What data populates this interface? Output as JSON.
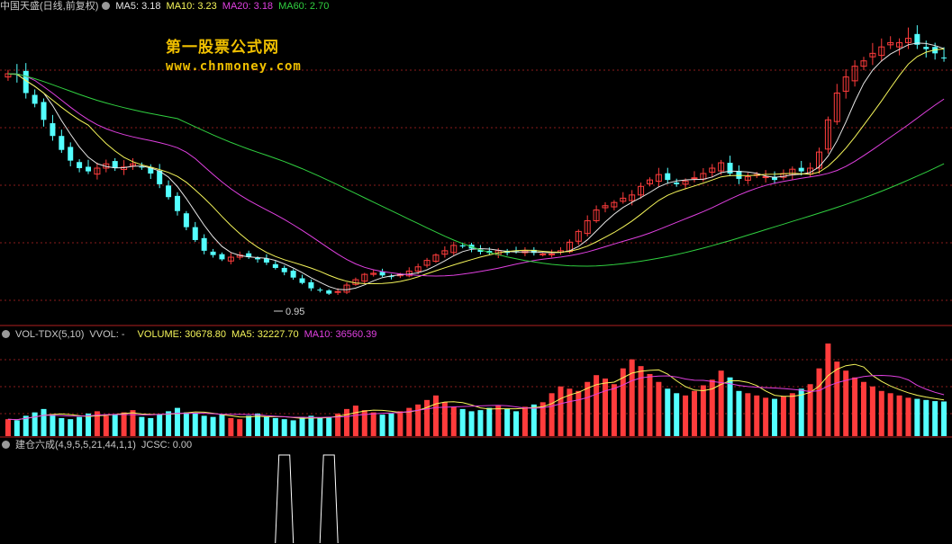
{
  "watermark": {
    "line1": "第一股票公式网",
    "line2": "www.chnmoney.com"
  },
  "panel_price": {
    "header": {
      "name": "中国天盛(日线,前复权)",
      "ma5": "MA5: 3.18",
      "ma10": "MA10: 3.23",
      "ma20": "MA20: 3.18",
      "ma60": "MA60: 2.70"
    },
    "low_marker": "0.95"
  },
  "panel_volume": {
    "header": {
      "name": "VOL-TDX(5,10)",
      "vvol": "VVOL: -",
      "volume": "VOLUME: 30678.80",
      "ma5": "MA5: 32227.70",
      "ma10": "MA10: 36560.39"
    }
  },
  "panel_indicator": {
    "header": {
      "name": "建仓六成(4,9,5,5,21,44,1,1)",
      "jcsc": "JCSC: 0.00"
    }
  },
  "colors": {
    "up": "#ff3c3c",
    "down": "#54ffff",
    "ma5": "#e6e6e6",
    "ma10": "#f5f55a",
    "ma20": "#e040e0",
    "ma60": "#30d040",
    "grid": "#8a1c1c",
    "header_name": "#c8c8c8",
    "volume_label": "#f5f55a",
    "indicator": "#ffffff"
  },
  "chart_data": [
    {
      "type": "candlestick",
      "title": "中国天盛(日线,前复权)",
      "series": [
        {
          "name": "MA5",
          "last": 3.18
        },
        {
          "name": "MA10",
          "last": 3.23
        },
        {
          "name": "MA20",
          "last": 3.18
        },
        {
          "name": "MA60",
          "last": 2.7
        }
      ],
      "annotations": [
        "0.95"
      ],
      "ylim": [
        0.7,
        3.6
      ],
      "close": [
        3.03,
        3.02,
        2.85,
        2.75,
        2.6,
        2.45,
        2.32,
        2.22,
        2.15,
        2.12,
        2.15,
        2.19,
        2.15,
        2.16,
        2.19,
        2.16,
        2.1,
        2.0,
        1.88,
        1.75,
        1.6,
        1.48,
        1.38,
        1.34,
        1.3,
        1.32,
        1.34,
        1.32,
        1.3,
        1.27,
        1.22,
        1.18,
        1.13,
        1.08,
        1.03,
        1.01,
        0.98,
        1.0,
        1.06,
        1.11,
        1.16,
        1.17,
        1.15,
        1.14,
        1.16,
        1.19,
        1.23,
        1.29,
        1.34,
        1.38,
        1.43,
        1.42,
        1.4,
        1.37,
        1.36,
        1.38,
        1.36,
        1.37,
        1.38,
        1.36,
        1.35,
        1.35,
        1.38,
        1.46,
        1.56,
        1.66,
        1.76,
        1.8,
        1.83,
        1.87,
        1.9,
        1.98,
        2.04,
        2.09,
        2.04,
        2.0,
        2.03,
        2.06,
        2.1,
        2.15,
        2.2,
        2.1,
        2.05,
        2.07,
        2.09,
        2.07,
        2.04,
        2.1,
        2.14,
        2.12,
        2.15,
        2.3,
        2.6,
        2.85,
        3.0,
        3.1,
        3.15,
        3.22,
        3.28,
        3.32,
        3.32,
        3.36,
        3.3,
        3.26,
        3.22,
        3.18
      ]
    },
    {
      "type": "bar",
      "title": "VOL-TDX(5,10)",
      "series": [
        {
          "name": "VOLUME",
          "last": 30678.8
        },
        {
          "name": "MA5",
          "last": 32227.7
        },
        {
          "name": "MA10",
          "last": 36560.39
        }
      ],
      "values": [
        15000,
        14000,
        18000,
        21000,
        24000,
        19000,
        16000,
        15000,
        17000,
        20000,
        22000,
        18000,
        19000,
        21000,
        23000,
        17000,
        16000,
        19000,
        22000,
        25000,
        21000,
        20000,
        18000,
        17000,
        19000,
        16000,
        15000,
        18000,
        20000,
        17000,
        16000,
        15000,
        14000,
        17000,
        18000,
        16000,
        17000,
        20000,
        24000,
        27000,
        23000,
        21000,
        19000,
        20000,
        22000,
        25000,
        28000,
        32000,
        36000,
        30000,
        26000,
        24000,
        22000,
        23000,
        25000,
        27000,
        24000,
        22000,
        26000,
        28000,
        30000,
        38000,
        44000,
        42000,
        40000,
        48000,
        54000,
        51000,
        46000,
        60000,
        68000,
        62000,
        55000,
        48000,
        42000,
        38000,
        36000,
        40000,
        45000,
        50000,
        58000,
        52000,
        40000,
        38000,
        36000,
        34000,
        33000,
        35000,
        38000,
        42000,
        46000,
        60000,
        82000,
        66000,
        58000,
        52000,
        48000,
        44000,
        40000,
        38000,
        36000,
        34000,
        33000,
        32000,
        31000,
        30679
      ]
    },
    {
      "type": "line",
      "title": "建仓六成(4,9,5,5,21,44,1,1)",
      "series": [
        {
          "name": "JCSC",
          "last": 0.0
        }
      ],
      "signal_bars": [
        31,
        36
      ]
    }
  ]
}
